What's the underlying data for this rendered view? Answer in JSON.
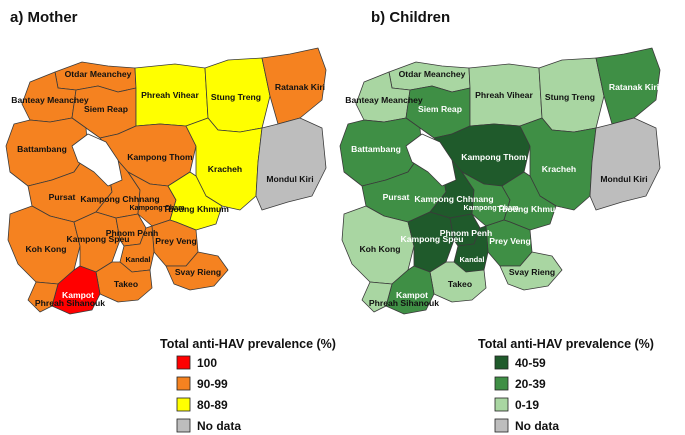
{
  "panels": {
    "mother": {
      "title": "a) Mother",
      "legend_title": "Total anti-HAV prevalence (%)",
      "legend": [
        {
          "label": "100",
          "color": "#ff0000"
        },
        {
          "label": "90-99",
          "color": "#f58220"
        },
        {
          "label": "80-89",
          "color": "#ffff00"
        },
        {
          "label": "No data",
          "color": "#bdbdbd"
        }
      ],
      "provinces": {
        "otdar_meanchey": "Otdar Meanchey",
        "banteay_meanchey": "Banteay Meanchey",
        "siem_reap": "Siem Reap",
        "preah_vihear": "Phreah Vihear",
        "stung_treng": "Stung Treng",
        "ratanak_kiri": "Ratanak Kiri",
        "battambang": "Battambang",
        "kampong_thom": "Kampong Thom",
        "kracheh": "Kracheh",
        "mondul_kiri": "Mondul Kiri",
        "pursat": "Pursat",
        "kampong_chhnang": "Kampong Chhnang",
        "kampong_cham": "Kampong Cham",
        "tbong_khmum": "Tboung Khmum",
        "koh_kong": "Koh Kong",
        "kampong_speu": "Kampong Speu",
        "phnom_penh": "Phnom Penh",
        "prey_veng": "Prey Veng",
        "kandal": "Kandal",
        "svay_rieng": "Svay Rieng",
        "takeo": "Takeo",
        "kampot": "Kampot",
        "preah_sihanouk": "Phreah Sihanouk"
      }
    },
    "children": {
      "title": "b) Children",
      "legend_title": "Total anti-HAV prevalence (%)",
      "legend": [
        {
          "label": "40-59",
          "color": "#1f5a2b"
        },
        {
          "label": "20-39",
          "color": "#3f8f45"
        },
        {
          "label": "0-19",
          "color": "#a9d6a2"
        },
        {
          "label": "No data",
          "color": "#bdbdbd"
        }
      ],
      "provinces": {
        "otdar_meanchey": "Otdar Meanchey",
        "banteay_meanchey": "Banteay Meanchey",
        "siem_reap": "Siem Reap",
        "preah_vihear": "Phreah Vihear",
        "stung_treng": "Stung Treng",
        "ratanak_kiri": "Ratanak Kiri",
        "battambang": "Battambang",
        "kampong_thom": "Kampong Thom",
        "kracheh": "Kracheh",
        "mondul_kiri": "Mondul Kiri",
        "pursat": "Pursat",
        "kampong_chhnang": "Kampong Chhnang",
        "kampong_cham": "Kampong Cham",
        "tbong_khmum": "Tboung Khmum",
        "koh_kong": "Koh Kong",
        "kampong_speu": "Kampong Speu",
        "phnom_penh": "Phnom Penh",
        "prey_veng": "Prey Veng",
        "kandal": "Kandal",
        "svay_rieng": "Svay Rieng",
        "takeo": "Takeo",
        "kampot": "Kampot",
        "preah_sihanouk": "Phreah Sihanouk"
      }
    }
  },
  "colors": {
    "mother_100": "#ff0000",
    "mother_90_99": "#f58220",
    "mother_80_89": "#ffff00",
    "children_40_59": "#1f5a2b",
    "children_20_39": "#3f8f45",
    "children_0_19": "#a9d6a2",
    "no_data": "#bdbdbd",
    "lake": "#ffffff"
  }
}
